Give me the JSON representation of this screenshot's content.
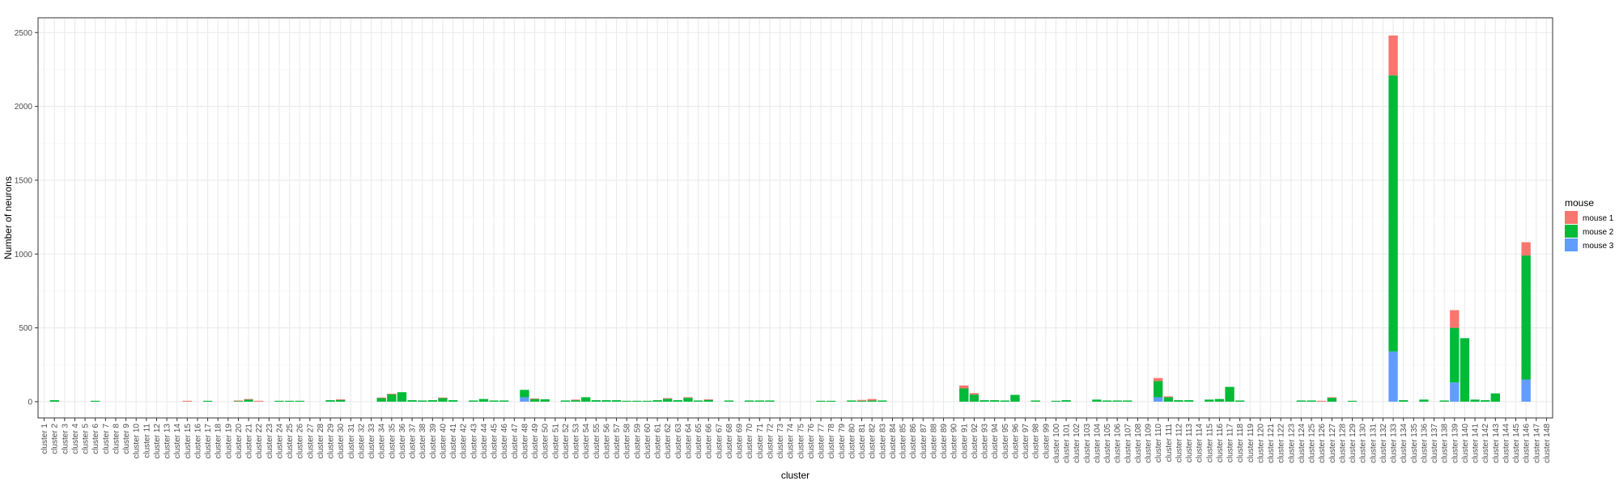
{
  "chart_data": {
    "type": "bar",
    "stacked": true,
    "xlabel": "cluster",
    "ylabel": "Number of neurons",
    "ylim": [
      0,
      2600
    ],
    "yticks": [
      0,
      500,
      1000,
      1500,
      2000,
      2500
    ],
    "grid": true,
    "legend": {
      "title": "mouse",
      "position": "right"
    },
    "categories": [
      "cluster 1",
      "cluster 2",
      "cluster 3",
      "cluster 4",
      "cluster 5",
      "cluster 6",
      "cluster 7",
      "cluster 8",
      "cluster 9",
      "cluster 10",
      "cluster 11",
      "cluster 12",
      "cluster 13",
      "cluster 14",
      "cluster 15",
      "cluster 16",
      "cluster 17",
      "cluster 18",
      "cluster 19",
      "cluster 20",
      "cluster 21",
      "cluster 22",
      "cluster 23",
      "cluster 24",
      "cluster 25",
      "cluster 26",
      "cluster 27",
      "cluster 28",
      "cluster 29",
      "cluster 30",
      "cluster 31",
      "cluster 32",
      "cluster 33",
      "cluster 34",
      "cluster 35",
      "cluster 36",
      "cluster 37",
      "cluster 38",
      "cluster 39",
      "cluster 40",
      "cluster 41",
      "cluster 42",
      "cluster 43",
      "cluster 44",
      "cluster 45",
      "cluster 46",
      "cluster 47",
      "cluster 48",
      "cluster 49",
      "cluster 50",
      "cluster 51",
      "cluster 52",
      "cluster 53",
      "cluster 54",
      "cluster 55",
      "cluster 56",
      "cluster 57",
      "cluster 58",
      "cluster 59",
      "cluster 60",
      "cluster 61",
      "cluster 62",
      "cluster 63",
      "cluster 64",
      "cluster 65",
      "cluster 66",
      "cluster 67",
      "cluster 68",
      "cluster 69",
      "cluster 70",
      "cluster 71",
      "cluster 72",
      "cluster 73",
      "cluster 74",
      "cluster 75",
      "cluster 76",
      "cluster 77",
      "cluster 78",
      "cluster 79",
      "cluster 80",
      "cluster 81",
      "cluster 82",
      "cluster 83",
      "cluster 84",
      "cluster 85",
      "cluster 86",
      "cluster 87",
      "cluster 88",
      "cluster 89",
      "cluster 90",
      "cluster 91",
      "cluster 92",
      "cluster 93",
      "cluster 94",
      "cluster 95",
      "cluster 96",
      "cluster 97",
      "cluster 98",
      "cluster 99",
      "cluster 100",
      "cluster 101",
      "cluster 102",
      "cluster 103",
      "cluster 104",
      "cluster 105",
      "cluster 106",
      "cluster 107",
      "cluster 108",
      "cluster 109",
      "cluster 110",
      "cluster 111",
      "cluster 112",
      "cluster 113",
      "cluster 114",
      "cluster 115",
      "cluster 116",
      "cluster 117",
      "cluster 118",
      "cluster 119",
      "cluster 120",
      "cluster 121",
      "cluster 122",
      "cluster 123",
      "cluster 124",
      "cluster 125",
      "cluster 126",
      "cluster 127",
      "cluster 128",
      "cluster 129",
      "cluster 130",
      "cluster 131",
      "cluster 132",
      "cluster 133",
      "cluster 134",
      "cluster 135",
      "cluster 136",
      "cluster 137",
      "cluster 138",
      "cluster 139",
      "cluster 140",
      "cluster 141",
      "cluster 142",
      "cluster 143",
      "cluster 144",
      "cluster 145",
      "cluster 146",
      "cluster 147",
      "cluster 148"
    ],
    "series": [
      {
        "name": "mouse 3",
        "color": "#619CFF",
        "values": [
          0,
          0,
          0,
          0,
          0,
          0,
          0,
          0,
          0,
          0,
          0,
          0,
          0,
          0,
          0,
          0,
          0,
          0,
          0,
          0,
          0,
          0,
          0,
          0,
          0,
          0,
          0,
          0,
          0,
          0,
          0,
          0,
          0,
          0,
          0,
          0,
          0,
          0,
          0,
          0,
          0,
          0,
          0,
          0,
          0,
          0,
          0,
          30,
          0,
          0,
          0,
          0,
          0,
          0,
          0,
          0,
          0,
          0,
          0,
          0,
          0,
          0,
          0,
          0,
          0,
          0,
          0,
          0,
          0,
          0,
          0,
          0,
          0,
          0,
          0,
          0,
          0,
          0,
          0,
          0,
          0,
          0,
          0,
          0,
          0,
          0,
          0,
          0,
          0,
          0,
          0,
          0,
          0,
          0,
          0,
          0,
          0,
          0,
          0,
          0,
          0,
          0,
          0,
          0,
          0,
          0,
          0,
          0,
          0,
          30,
          0,
          0,
          0,
          0,
          0,
          0,
          0,
          0,
          0,
          0,
          0,
          0,
          0,
          0,
          0,
          0,
          0,
          0,
          0,
          0,
          0,
          0,
          340,
          0,
          0,
          0,
          0,
          0,
          130,
          0,
          0,
          0,
          0,
          0,
          0,
          150,
          0,
          0
        ]
      },
      {
        "name": "mouse 2",
        "color": "#00BA38",
        "values": [
          0,
          10,
          0,
          0,
          0,
          6,
          0,
          0,
          0,
          0,
          0,
          0,
          0,
          0,
          0,
          0,
          6,
          0,
          0,
          4,
          14,
          0,
          0,
          6,
          6,
          6,
          0,
          0,
          10,
          12,
          0,
          0,
          0,
          24,
          50,
          64,
          10,
          8,
          10,
          24,
          10,
          0,
          8,
          18,
          8,
          8,
          0,
          50,
          18,
          16,
          0,
          8,
          10,
          30,
          10,
          10,
          10,
          6,
          6,
          6,
          10,
          20,
          10,
          26,
          8,
          12,
          0,
          8,
          0,
          8,
          8,
          8,
          0,
          0,
          0,
          0,
          6,
          6,
          0,
          8,
          6,
          8,
          8,
          0,
          0,
          0,
          0,
          0,
          0,
          0,
          90,
          48,
          10,
          10,
          8,
          46,
          0,
          8,
          0,
          6,
          10,
          0,
          0,
          14,
          8,
          8,
          8,
          0,
          0,
          110,
          30,
          10,
          10,
          0,
          14,
          18,
          100,
          8,
          0,
          0,
          0,
          0,
          0,
          8,
          8,
          0,
          26,
          0,
          6,
          0,
          0,
          0,
          1870,
          10,
          0,
          14,
          0,
          8,
          370,
          430,
          14,
          10,
          56,
          0,
          0,
          840,
          0,
          0
        ]
      },
      {
        "name": "mouse 1",
        "color": "#F8766D",
        "values": [
          0,
          0,
          0,
          0,
          0,
          0,
          0,
          0,
          0,
          0,
          0,
          0,
          0,
          0,
          6,
          0,
          0,
          0,
          0,
          4,
          4,
          6,
          0,
          0,
          0,
          0,
          0,
          0,
          0,
          4,
          0,
          0,
          0,
          4,
          4,
          0,
          0,
          0,
          0,
          4,
          0,
          0,
          0,
          0,
          0,
          0,
          0,
          0,
          4,
          0,
          0,
          0,
          4,
          0,
          0,
          0,
          0,
          0,
          0,
          0,
          0,
          4,
          0,
          4,
          0,
          4,
          0,
          0,
          0,
          0,
          0,
          0,
          0,
          0,
          0,
          0,
          0,
          0,
          0,
          0,
          6,
          10,
          0,
          0,
          0,
          0,
          0,
          0,
          0,
          0,
          20,
          10,
          0,
          0,
          0,
          0,
          0,
          0,
          0,
          0,
          0,
          0,
          0,
          0,
          0,
          0,
          0,
          0,
          0,
          20,
          6,
          0,
          0,
          0,
          0,
          0,
          0,
          0,
          0,
          0,
          0,
          0,
          0,
          0,
          0,
          6,
          4,
          0,
          0,
          0,
          0,
          0,
          270,
          0,
          0,
          0,
          0,
          0,
          120,
          0,
          0,
          0,
          0,
          0,
          0,
          90,
          0,
          0
        ]
      }
    ]
  }
}
